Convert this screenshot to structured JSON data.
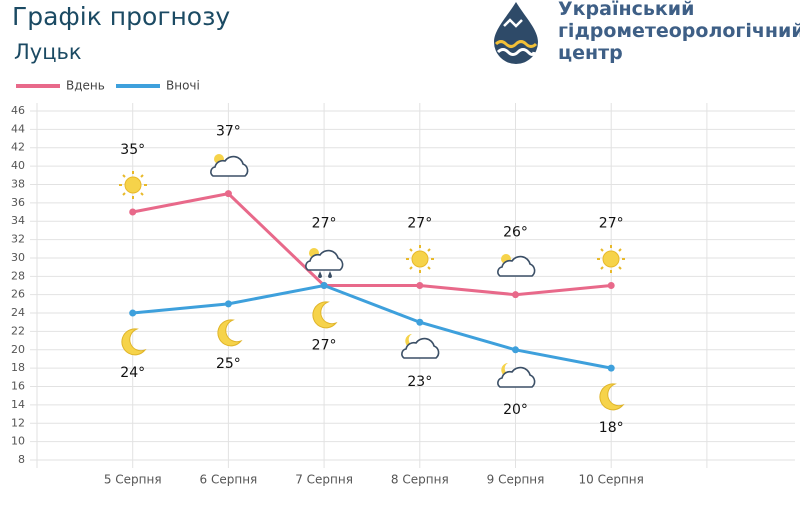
{
  "header": {
    "title": "Графік прогнозу",
    "city": "Луцьк",
    "org_lines": [
      "Український",
      "гідрометеорологічний",
      "центр"
    ]
  },
  "chart_data": {
    "type": "line",
    "categories": [
      "5 Серпня",
      "6 Серпня",
      "7 Серпня",
      "8 Серпня",
      "9 Серпня",
      "10 Серпня"
    ],
    "series": [
      {
        "name": "Вдень",
        "color": "#e8698a",
        "values": [
          35,
          37,
          27,
          27,
          26,
          27
        ],
        "value_labels": [
          "35°",
          "37°",
          "27°",
          "27°",
          "26°",
          "27°"
        ]
      },
      {
        "name": "Вночі",
        "color": "#3ea0dc",
        "values": [
          24,
          25,
          27,
          23,
          20,
          18
        ],
        "value_labels": [
          "24°",
          "25°",
          "27°",
          "23°",
          "20°",
          "18°"
        ]
      }
    ],
    "ylim": [
      8,
      46
    ],
    "yticks": [
      8,
      10,
      12,
      14,
      16,
      18,
      20,
      22,
      24,
      26,
      28,
      30,
      32,
      34,
      36,
      38,
      40,
      42,
      44,
      46
    ],
    "grid": true
  }
}
